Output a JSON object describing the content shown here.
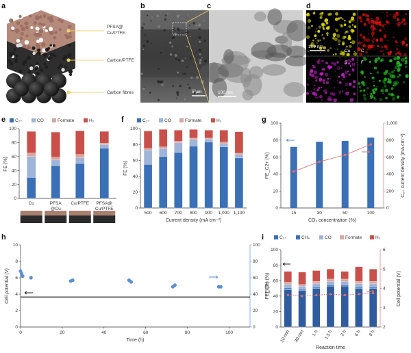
{
  "panel_labels": [
    "a",
    "b",
    "c",
    "d",
    "e",
    "f",
    "g",
    "h",
    "i"
  ],
  "panel_a": {
    "labels": [
      "PFSA@ Cu/PTFE",
      "Carbon/PTFE",
      "Carbon fibres"
    ],
    "colors": {
      "cu_layer": "#b58a7a",
      "carbon_layer": "#2e2e2e",
      "fibre": "#1c1c1c",
      "pointer": "#f2d36b"
    }
  },
  "panel_b": {
    "scale_bar": "5 μm"
  },
  "panel_c": {
    "scale_bar": "100 nm"
  },
  "panel_d": {
    "scale_bar": "100 nm",
    "maps": [
      {
        "label": "Cu",
        "color": "#e8e000"
      },
      {
        "label": "C",
        "color": "#e01010"
      },
      {
        "label": "S",
        "color": "#c020c0"
      },
      {
        "label": "F",
        "color": "#20c020"
      }
    ]
  },
  "legend": {
    "c2": "C₂₊",
    "co": "CO",
    "formate": "Formate",
    "h2": "H₂",
    "ch4": "CH₄"
  },
  "colors": {
    "c2": "#3b6fb6",
    "co": "#9fb4d6",
    "formate": "#d9a7a2",
    "h2": "#c9504a",
    "red_axis": "#e07070",
    "blue_axis": "#5b8fd6",
    "trace": "#444444"
  },
  "chart_data": [
    {
      "panel": "e",
      "type": "bar",
      "categories": [
        "Cu",
        "PFSA\n@Cu",
        "Cu/PTFE",
        "PFSA@\nCu/PTFE"
      ],
      "ylabel": "FE (%)",
      "ylim": [
        0,
        100
      ],
      "yticks": [
        0,
        20,
        40,
        60,
        80,
        100
      ],
      "series": [
        {
          "name": "C₂₊",
          "values": [
            30,
            47,
            50,
            72
          ]
        },
        {
          "name": "CO",
          "values": [
            30,
            8,
            8,
            5
          ]
        },
        {
          "name": "Formate",
          "values": [
            5,
            4,
            5,
            2
          ]
        },
        {
          "name": "H₂",
          "values": [
            31,
            36,
            34,
            17
          ]
        }
      ]
    },
    {
      "panel": "f",
      "type": "bar",
      "categories": [
        "500",
        "600",
        "700",
        "800",
        "900",
        "1,000",
        "1,100"
      ],
      "xlabel": "Current density (mA cm⁻²)",
      "ylabel": "FE (%)",
      "ylim": [
        0,
        100
      ],
      "yticks": [
        0,
        20,
        40,
        60,
        80,
        100
      ],
      "series": [
        {
          "name": "C₂₊",
          "values": [
            55,
            65,
            70,
            78,
            83,
            77,
            63
          ]
        },
        {
          "name": "CO",
          "values": [
            18,
            10,
            12,
            8,
            4,
            4,
            4
          ]
        },
        {
          "name": "Formate",
          "values": [
            2,
            2,
            2,
            2,
            1,
            2,
            2
          ]
        },
        {
          "name": "H₂",
          "values": [
            22,
            22,
            14,
            11,
            10,
            15,
            27
          ]
        }
      ]
    },
    {
      "panel": "g",
      "type": "bar",
      "categories": [
        "15",
        "30",
        "50",
        "100"
      ],
      "xlabel": "CO₂ concentration (%)",
      "ylabel": "FE_C2+ (%)",
      "ylabel_right": "C₂₊ current density (mA cm⁻²)",
      "ylim": [
        0,
        100
      ],
      "yticks": [
        0,
        20,
        40,
        60,
        80,
        100
      ],
      "ylim_right": [
        0,
        1000
      ],
      "yticks_right": [
        0,
        200,
        400,
        600,
        800,
        1000
      ],
      "yticks_right_labels": [
        "0",
        "200",
        "400",
        "600",
        "800",
        "1,000"
      ],
      "series": [
        {
          "name": "FE C₂₊",
          "values": [
            72,
            78,
            79,
            83
          ]
        },
        {
          "name": "C₂₊ current density",
          "values": [
            430,
            545,
            625,
            750
          ]
        }
      ]
    },
    {
      "panel": "h",
      "type": "scatter",
      "xlabel": "Time (h)",
      "ylabel": "Cell potential (V)",
      "ylabel_right": "FE_C2+ (%)",
      "xlim": [
        0,
        110
      ],
      "xticks": [
        0,
        20,
        40,
        60,
        80,
        100
      ],
      "ylim": [
        0,
        10
      ],
      "yticks": [
        0,
        2,
        4,
        6,
        8,
        10
      ],
      "ylim_right": [
        0,
        100
      ],
      "yticks_right": [
        0,
        20,
        40,
        60,
        80,
        100
      ],
      "cell_potential_v": 3.65,
      "series": [
        {
          "name": "FE C₂₊",
          "x": [
            0,
            0.5,
            1,
            5,
            24,
            25,
            52,
            53,
            73,
            74,
            95,
            96
          ],
          "y": [
            68,
            65,
            62,
            60,
            56,
            57,
            57,
            55,
            49,
            51,
            49,
            49
          ]
        }
      ]
    },
    {
      "panel": "i",
      "type": "bar",
      "categories": [
        "10 min",
        "30 min",
        "1 h",
        "1.5 h",
        "2 h",
        "6 h",
        "8 h"
      ],
      "xlabel": "Reaction time",
      "ylabel": "FE (%)",
      "ylabel_right": "Cell potential (V)",
      "ylim": [
        0,
        100
      ],
      "yticks": [
        0,
        20,
        40,
        60,
        80,
        100
      ],
      "ylim_right": [
        2,
        6
      ],
      "yticks_right": [
        2,
        3,
        4,
        5,
        6
      ],
      "series": [
        {
          "name": "C₂₊",
          "values": [
            48,
            47,
            50,
            53,
            53,
            50,
            50
          ]
        },
        {
          "name": "CH₄",
          "values": [
            3,
            2,
            2,
            2,
            2,
            2,
            2
          ]
        },
        {
          "name": "CO",
          "values": [
            4,
            4,
            4,
            4,
            4,
            4,
            4
          ]
        },
        {
          "name": "Formate",
          "values": [
            3,
            2,
            3,
            3,
            3,
            3,
            3
          ]
        },
        {
          "name": "H₂",
          "values": [
            14,
            16,
            14,
            13,
            10,
            19,
            16
          ]
        },
        {
          "name": "Cell potential",
          "values": [
            3.65,
            3.6,
            3.65,
            3.7,
            3.65,
            3.7,
            3.75
          ]
        }
      ]
    }
  ]
}
